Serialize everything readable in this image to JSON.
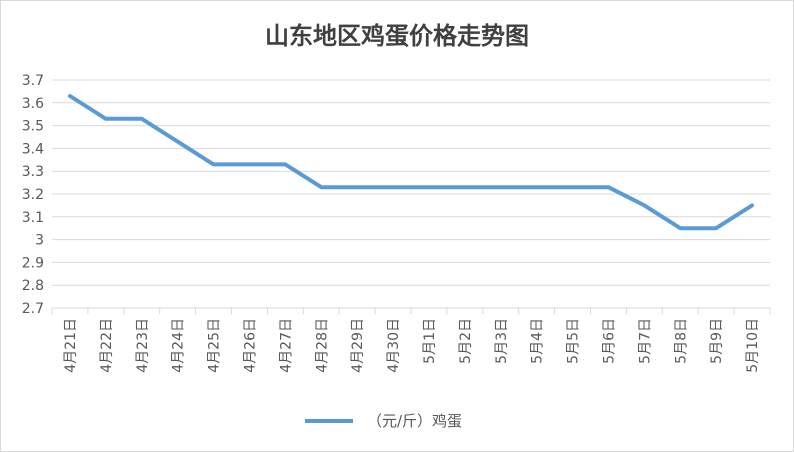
{
  "chart_data": {
    "type": "line",
    "title": "山东地区鸡蛋价格走势图",
    "xlabel": "",
    "ylabel": "",
    "categories": [
      "4月21日",
      "4月22日",
      "4月23日",
      "4月24日",
      "4月25日",
      "4月26日",
      "4月27日",
      "4月28日",
      "4月29日",
      "4月30日",
      "5月1日",
      "5月2日",
      "5月3日",
      "5月4日",
      "5月5日",
      "5月6日",
      "5月7日",
      "5月8日",
      "5月9日",
      "5月10日"
    ],
    "series": [
      {
        "name": "（元/斤）鸡蛋",
        "color": "#5b9bd5",
        "values": [
          3.63,
          3.53,
          3.53,
          3.43,
          3.33,
          3.33,
          3.33,
          3.23,
          3.23,
          3.23,
          3.23,
          3.23,
          3.23,
          3.23,
          3.23,
          3.23,
          3.15,
          3.05,
          3.05,
          3.15
        ]
      }
    ],
    "ylim": [
      2.7,
      3.7
    ],
    "yticks": [
      "3.7",
      "3.6",
      "3.5",
      "3.4",
      "3.3",
      "3.2",
      "3.1",
      "3",
      "2.9",
      "2.8",
      "2.7"
    ],
    "grid": true,
    "legend_position": "bottom"
  },
  "colors": {
    "line": "#5b9bd5",
    "grid": "#d9d9d9",
    "text": "#595959"
  }
}
